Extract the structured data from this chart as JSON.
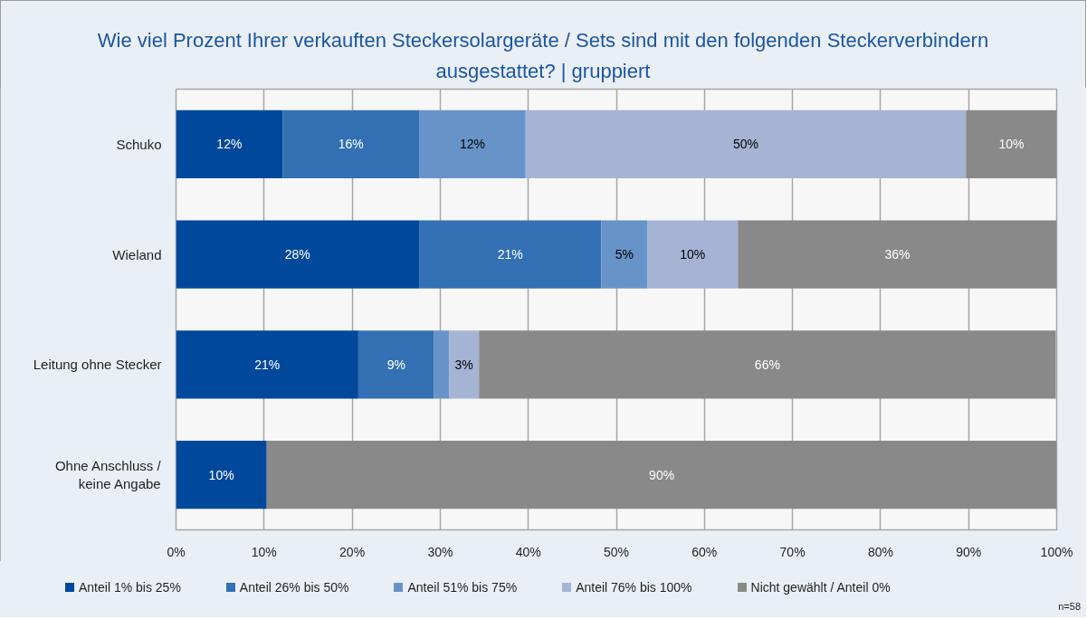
{
  "chart_data": {
    "type": "bar",
    "orientation": "horizontal",
    "stacked": true,
    "title": "Wie viel Prozent Ihrer verkauften Steckersolargeräte / Sets sind mit den folgenden Steckerverbindern ausgestattet? | gruppiert",
    "categories": [
      "Schuko",
      "Wieland",
      "Leitung ohne Stecker",
      "Ohne Anschluss / keine Angabe"
    ],
    "series": [
      {
        "name": "Anteil 1% bis 25%",
        "color": "#00489c",
        "values": [
          12.1,
          27.6,
          20.7,
          10.3
        ],
        "value_labels": [
          "12%",
          "28%",
          "21%",
          "10%"
        ]
      },
      {
        "name": "Anteil 26% bis 50%",
        "color": "#3370b4",
        "values": [
          15.5,
          20.7,
          8.6,
          0
        ],
        "value_labels": [
          "16%",
          "21%",
          "9%",
          null
        ]
      },
      {
        "name": "Anteil 51% bis 75%",
        "color": "#6794c8",
        "values": [
          12.1,
          5.2,
          1.7,
          0
        ],
        "value_labels": [
          "12%",
          "5%",
          null,
          null
        ]
      },
      {
        "name": "Anteil 76% bis 100%",
        "color": "#a5b4d4",
        "values": [
          50.0,
          10.3,
          3.4,
          0
        ],
        "value_labels": [
          "50%",
          "10%",
          "3%",
          null
        ]
      },
      {
        "name": "Nicht gewählt / Anteil 0%",
        "color": "#898989",
        "values": [
          10.3,
          36.2,
          65.5,
          89.7
        ],
        "value_labels": [
          "10%",
          "36%",
          "66%",
          "90%"
        ]
      }
    ],
    "xlim": [
      0,
      100
    ],
    "xticks": [
      {
        "value": 0,
        "label": "0%"
      },
      {
        "value": 10,
        "label": "10%"
      },
      {
        "value": 20,
        "label": "20%"
      },
      {
        "value": 30,
        "label": "30%"
      },
      {
        "value": 40,
        "label": "40%"
      },
      {
        "value": 50,
        "label": "50%"
      },
      {
        "value": 60,
        "label": "60%"
      },
      {
        "value": 70,
        "label": "70%"
      },
      {
        "value": 80,
        "label": "80%"
      },
      {
        "value": 90,
        "label": "90%"
      },
      {
        "value": 100,
        "label": "100%"
      }
    ],
    "grid": "x",
    "legend": "bottom",
    "annotations": [
      "n=58"
    ]
  }
}
